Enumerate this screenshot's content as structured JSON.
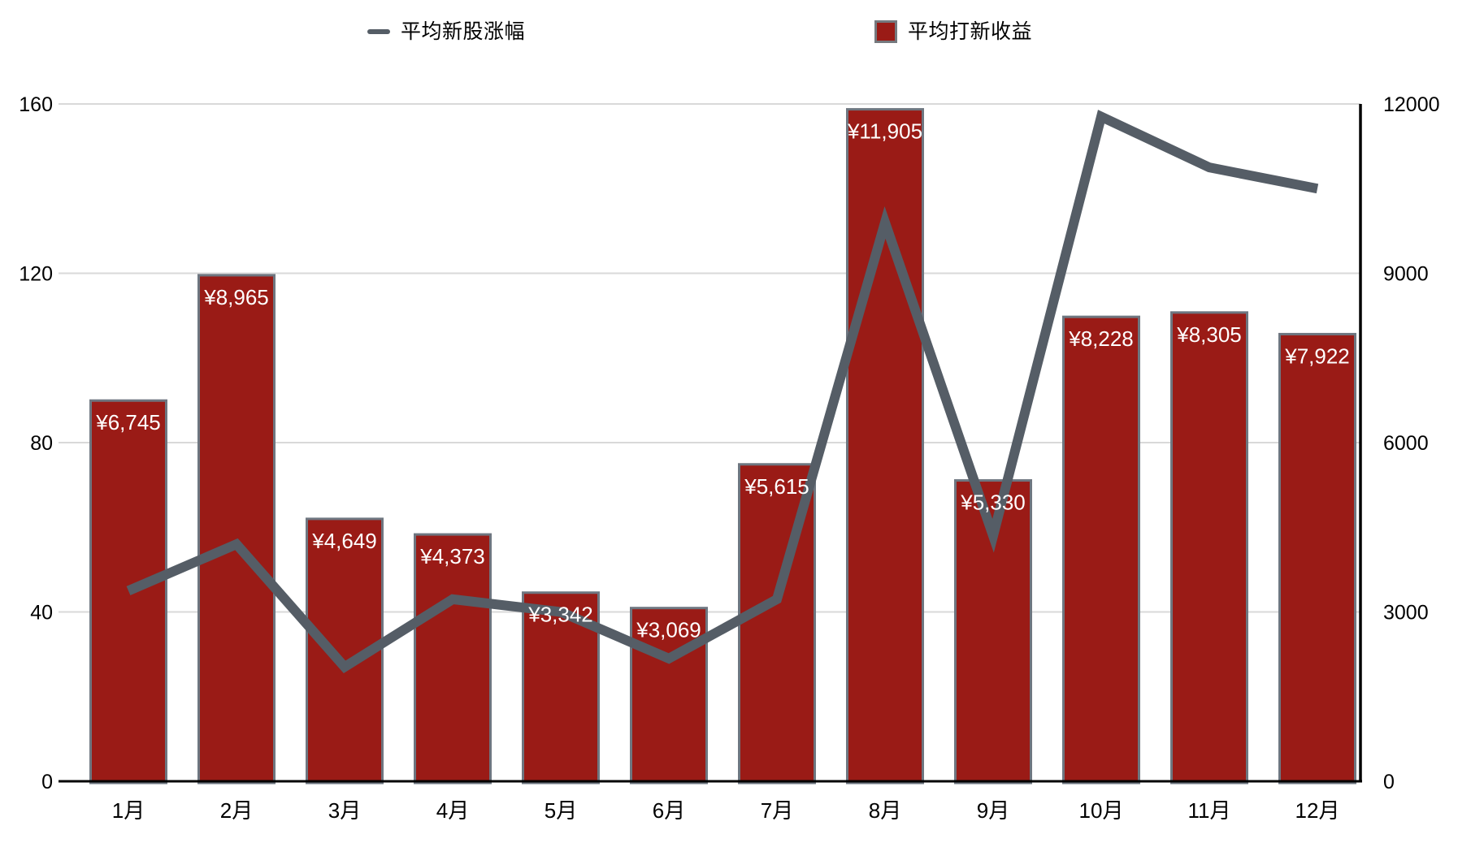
{
  "legend": {
    "items": [
      {
        "label": "平均新股涨幅",
        "marker": "line-dash",
        "color": "#555D66"
      },
      {
        "label": "平均打新收益",
        "marker": "square",
        "color": "#9A1B16"
      }
    ]
  },
  "colors": {
    "bar_fill": "#9A1B16",
    "bar_border": "#6E7680",
    "line": "#555D66",
    "gridline": "#D9D9D9",
    "axis_line": "#000000",
    "bar_label_text": "#FFFFFF",
    "tick_text": "#000000",
    "background": "#FFFFFF"
  },
  "chart_data": {
    "type": "bar",
    "subtype": "combo-bar-line-dual-axis",
    "categories": [
      "1月",
      "2月",
      "3月",
      "4月",
      "5月",
      "6月",
      "7月",
      "8月",
      "9月",
      "10月",
      "11月",
      "12月"
    ],
    "series": [
      {
        "name": "平均打新收益",
        "type": "bar",
        "axis": "right",
        "values": [
          6745,
          8965,
          4649,
          4373,
          3342,
          3069,
          5615,
          11905,
          5330,
          8228,
          8305,
          7922
        ],
        "value_labels": [
          "¥6,745",
          "¥8,965",
          "¥4,649",
          "¥4,373",
          "¥3,342",
          "¥3,069",
          "¥5,615",
          "¥11,905",
          "¥5,330",
          "¥8,228",
          "¥8,305",
          "¥7,922"
        ]
      },
      {
        "name": "平均新股涨幅",
        "type": "line",
        "axis": "left",
        "values": [
          45,
          56,
          27,
          43,
          40,
          29,
          43,
          132,
          58,
          157,
          145,
          140
        ]
      }
    ],
    "left_axis": {
      "ticks": [
        "0",
        "40",
        "80",
        "120",
        "160"
      ],
      "tick_values": [
        0,
        40,
        80,
        120,
        160
      ],
      "range": [
        0,
        160
      ]
    },
    "right_axis": {
      "ticks": [
        "0",
        "3000",
        "6000",
        "9000",
        "12000"
      ],
      "tick_values": [
        0,
        3000,
        6000,
        9000,
        12000
      ],
      "range": [
        0,
        12000
      ]
    },
    "grid": true,
    "legend_position": "top",
    "title": "",
    "xlabel": "",
    "ylabel_left": "",
    "ylabel_right": ""
  }
}
